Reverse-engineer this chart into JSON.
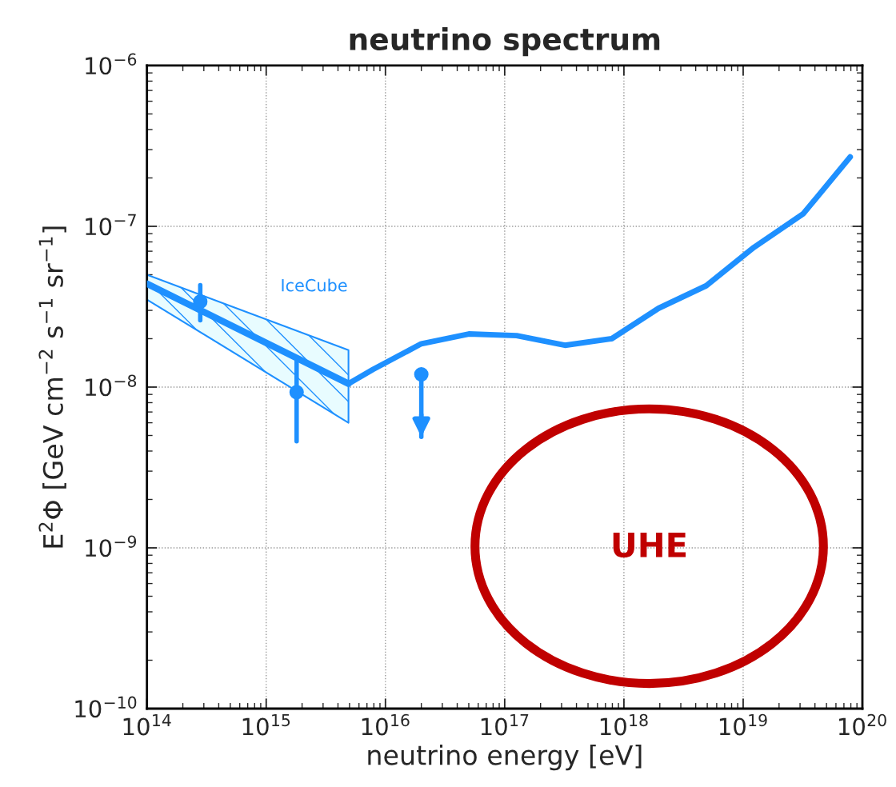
{
  "chart_data": {
    "type": "line",
    "title": "neutrino spectrum",
    "xlabel": "neutrino energy [eV]",
    "ylabel": "E$^{2}$Φ [GeV cm$^{−2}$ s$^{−1}$ sr$^{−1}$]",
    "log": "xy",
    "grid": true,
    "xlim": [
      100000000000000.0,
      1e+20
    ],
    "ylim": [
      1e-10,
      1e-06
    ],
    "xticks": [
      {
        "value": 100000000000000.0,
        "label": "10$^{14}$"
      },
      {
        "value": 1000000000000000.0,
        "label": "10$^{15}$"
      },
      {
        "value": 1e+16,
        "label": "10$^{16}$"
      },
      {
        "value": 1e+17,
        "label": "10$^{17}$"
      },
      {
        "value": 1e+18,
        "label": "10$^{18}$"
      },
      {
        "value": 1e+19,
        "label": "10$^{19}$"
      },
      {
        "value": 1e+20,
        "label": "10$^{20}$"
      }
    ],
    "yticks": [
      {
        "value": 1e-10,
        "label": "10$^{−10}$"
      },
      {
        "value": 1e-09,
        "label": "10$^{−9}$"
      },
      {
        "value": 1e-08,
        "label": "10$^{−8}$"
      },
      {
        "value": 1e-07,
        "label": "10$^{−7}$"
      },
      {
        "value": 1e-06,
        "label": "10$^{−6}$"
      }
    ],
    "series": [
      {
        "name": "IceCube",
        "color": "#1e90ff",
        "x": [
          100000000000000.0,
          4900000000000000.0
        ],
        "values": [
          4.4e-08,
          1.05e-08
        ],
        "lower": [
          3.5e-08,
          6e-09
        ],
        "upper": [
          5e-08,
          1.7e-08
        ]
      },
      {
        "color": "#1e90ff",
        "x": [
          4900000000000000.0,
          7900000000000000.0,
          2e+16,
          5e+16,
          1.26e+17,
          3.2e+17,
          7.9e+17,
          1.95e+18,
          4.9e+18,
          1.23e+19,
          3.2e+19,
          7.9e+19
        ],
        "values": [
          1.05e-08,
          1.29e-08,
          1.86e-08,
          2.14e-08,
          2.09e-08,
          1.82e-08,
          2e-08,
          3.09e-08,
          4.27e-08,
          7.4e-08,
          1.2e-07,
          2.7e-07
        ]
      },
      {
        "type": "scatter",
        "color": "#1e90ff",
        "marker": "circle",
        "x": [
          280000000000000.0,
          1800000000000000.0
        ],
        "values": [
          3.4e-08,
          9.3e-09
        ],
        "errors": [
          [
            2.6e-08,
            4.3e-08
          ],
          [
            4.6e-09,
            1.5e-08
          ]
        ]
      },
      {
        "type": "scatter",
        "color": "#1e90ff",
        "marker": "circle",
        "x": [
          2e+16
        ],
        "values": [
          1.2e-08
        ],
        "errors": [
          [
            4.9e-09,
            1.2e-08
          ]
        ]
      }
    ],
    "annotations": [
      "UHE"
    ]
  }
}
